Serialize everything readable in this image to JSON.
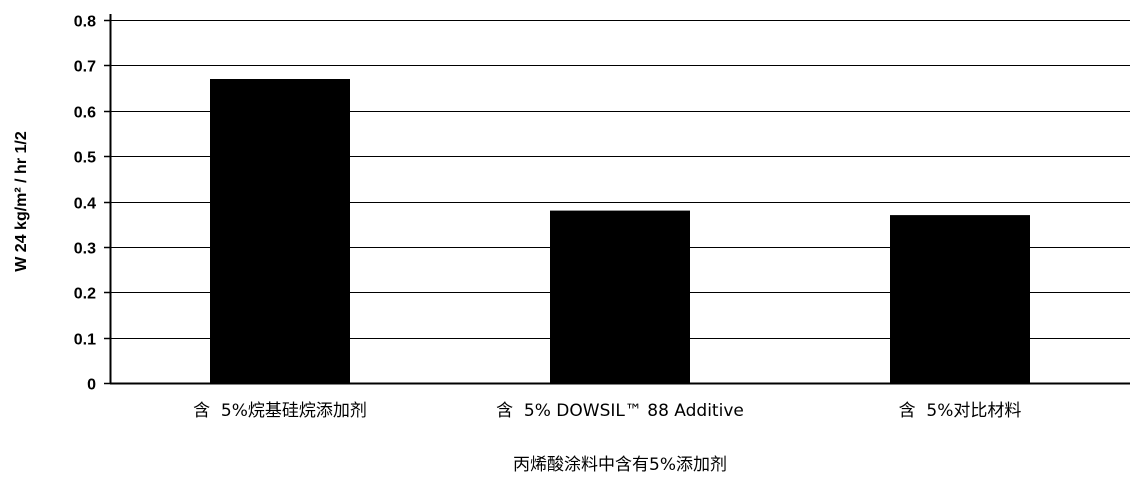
{
  "chart_data": {
    "type": "bar",
    "categories": [
      "含  5%烷基硅烷添加剂",
      "含  5% DOWSIL™ 88 Additive",
      "含  5%对比材料"
    ],
    "values": [
      0.67,
      0.38,
      0.37
    ],
    "xlabel": "丙烯酸涂料中含有5%添加剂",
    "ylabel": "W 24 kg/m² / hr 1/2",
    "ylim": [
      0,
      0.8
    ],
    "yticks": [
      0,
      0.1,
      0.2,
      0.3,
      0.4,
      0.5,
      0.6,
      0.7,
      0.8
    ],
    "ytick_labels": [
      "0",
      "0.1",
      "0.2",
      "0.3",
      "0.4",
      "0.5",
      "0.6",
      "0.7",
      "0.8"
    ],
    "grid": true,
    "legend": "none",
    "bar_color": "#000000",
    "grid_color": "#000000"
  }
}
